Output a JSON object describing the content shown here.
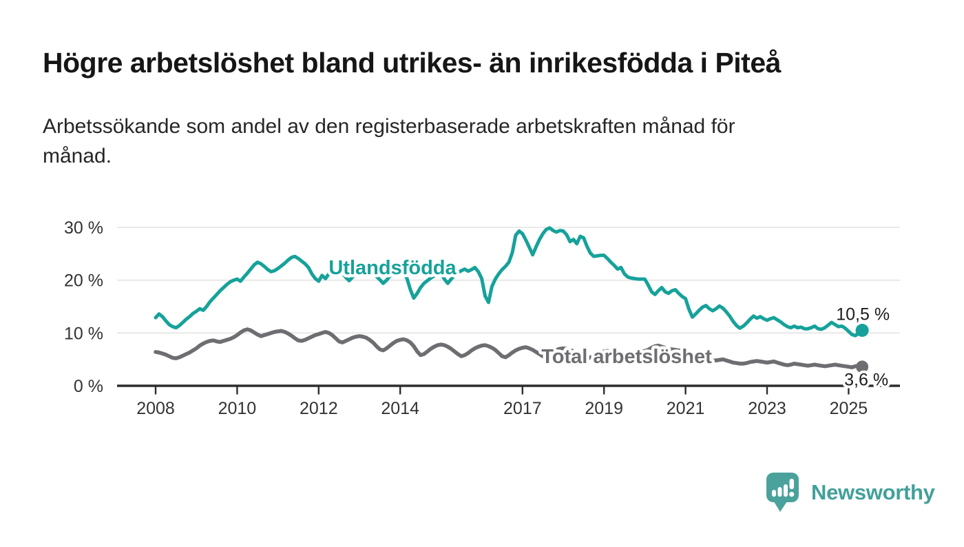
{
  "header": {
    "title": "Högre arbetslöshet bland utrikes- än inrikesfödda i Piteå",
    "subtitle": "Arbetssökande som andel av den registerbaserade arbetskraften månad för\nmånad."
  },
  "chart_data": {
    "type": "line",
    "x_start_year": 2008,
    "points_per_year": 12,
    "x_tick_years": [
      2008,
      2010,
      2012,
      2014,
      2017,
      2019,
      2021,
      2023,
      2025
    ],
    "x_tick_labels": [
      "2008",
      "2010",
      "2012",
      "2014",
      "2017",
      "2019",
      "2021",
      "2023",
      "2025"
    ],
    "y_tick_values": [
      30,
      20,
      10,
      0
    ],
    "y_tick_labels": [
      "30 %",
      "20 %",
      "10 %",
      "0 %"
    ],
    "ylim": [
      0,
      30
    ],
    "grid": "horizontal",
    "legend_position": "inline-labels",
    "series": [
      {
        "name": "Utlandsfödda",
        "color": "#16a29a",
        "end_label": "10,5 %",
        "values": [
          12.9,
          13.6,
          13.1,
          12.3,
          11.6,
          11.2,
          11.0,
          11.4,
          12.0,
          12.6,
          13.1,
          13.7,
          14.1,
          14.6,
          14.3,
          15.0,
          15.9,
          16.6,
          17.3,
          18.0,
          18.6,
          19.2,
          19.7,
          20.0,
          20.2,
          19.8,
          20.6,
          21.3,
          22.1,
          22.9,
          23.4,
          23.1,
          22.6,
          22.0,
          21.6,
          21.8,
          22.2,
          22.7,
          23.2,
          23.8,
          24.3,
          24.5,
          24.1,
          23.6,
          23.1,
          22.4,
          21.2,
          20.3,
          19.8,
          20.9,
          20.3,
          21.2,
          21.8,
          22.2,
          21.9,
          21.3,
          20.5,
          19.9,
          20.6,
          21.2,
          21.5,
          21.9,
          22.2,
          21.8,
          21.3,
          20.7,
          20.1,
          19.4,
          20.0,
          20.8,
          21.3,
          21.7,
          21.9,
          21.4,
          20.3,
          18.2,
          16.6,
          17.5,
          18.6,
          19.4,
          19.9,
          20.4,
          20.8,
          21.1,
          21.3,
          20.2,
          19.4,
          20.2,
          20.9,
          21.4,
          21.8,
          22.1,
          21.7,
          22.0,
          22.4,
          21.6,
          20.3,
          17.0,
          15.8,
          18.8,
          20.2,
          21.2,
          22.0,
          22.6,
          23.4,
          25.2,
          28.5,
          29.3,
          28.8,
          27.6,
          26.2,
          24.8,
          26.3,
          27.7,
          28.8,
          29.6,
          29.9,
          29.4,
          29.1,
          29.4,
          29.3,
          28.6,
          27.3,
          27.7,
          26.9,
          28.3,
          28.0,
          26.4,
          25.1,
          24.5,
          24.6,
          24.7,
          24.7,
          24.1,
          23.4,
          22.8,
          22.1,
          22.4,
          21.2,
          20.6,
          20.4,
          20.3,
          20.2,
          20.2,
          20.2,
          19.1,
          17.8,
          17.3,
          18.0,
          18.6,
          17.8,
          17.5,
          18.0,
          18.2,
          17.5,
          16.9,
          16.5,
          14.5,
          13.0,
          13.6,
          14.3,
          14.9,
          15.2,
          14.6,
          14.2,
          14.6,
          15.1,
          14.7,
          14.0,
          13.2,
          12.2,
          11.4,
          10.9,
          11.3,
          11.9,
          12.6,
          13.2,
          12.8,
          13.1,
          12.7,
          12.4,
          12.7,
          12.9,
          12.5,
          12.1,
          11.6,
          11.2,
          11.0,
          11.3,
          11.0,
          11.1,
          10.8,
          10.8,
          11.0,
          11.3,
          10.8,
          10.7,
          11.0,
          11.5,
          12.0,
          11.6,
          11.2,
          11.3,
          10.9,
          10.3,
          9.7,
          9.5,
          10.0,
          10.5
        ]
      },
      {
        "name": "Total arbetslöshet",
        "color": "#6e6e72",
        "end_label": "3,6 %",
        "values": [
          6.4,
          6.3,
          6.1,
          5.9,
          5.6,
          5.3,
          5.2,
          5.4,
          5.7,
          6.0,
          6.3,
          6.7,
          7.1,
          7.6,
          8.0,
          8.3,
          8.5,
          8.6,
          8.4,
          8.3,
          8.5,
          8.7,
          8.9,
          9.2,
          9.6,
          10.1,
          10.5,
          10.7,
          10.5,
          10.1,
          9.7,
          9.4,
          9.6,
          9.8,
          10.0,
          10.2,
          10.3,
          10.4,
          10.2,
          9.9,
          9.5,
          9.0,
          8.6,
          8.5,
          8.7,
          9.0,
          9.3,
          9.6,
          9.8,
          10.0,
          10.2,
          10.0,
          9.6,
          9.0,
          8.4,
          8.2,
          8.5,
          8.8,
          9.1,
          9.3,
          9.4,
          9.3,
          9.1,
          8.7,
          8.2,
          7.5,
          6.9,
          6.7,
          7.1,
          7.6,
          8.1,
          8.5,
          8.7,
          8.8,
          8.6,
          8.2,
          7.5,
          6.5,
          5.8,
          6.0,
          6.5,
          7.0,
          7.4,
          7.7,
          7.8,
          7.7,
          7.4,
          7.0,
          6.5,
          6.0,
          5.6,
          5.8,
          6.2,
          6.7,
          7.1,
          7.4,
          7.6,
          7.7,
          7.5,
          7.2,
          6.8,
          6.2,
          5.6,
          5.4,
          5.8,
          6.3,
          6.7,
          7.0,
          7.2,
          7.3,
          7.1,
          6.8,
          6.4,
          6.0,
          5.6,
          5.8,
          6.2,
          6.5,
          6.8,
          7.0,
          7.1,
          7.0,
          6.8,
          6.5,
          6.1,
          5.6,
          5.2,
          5.1,
          5.4,
          5.7,
          6.0,
          6.3,
          6.5,
          6.6,
          6.4,
          6.1,
          5.8,
          5.4,
          5.1,
          5.2,
          5.5,
          5.8,
          6.1,
          6.4,
          6.6,
          6.8,
          7.2,
          7.5,
          7.6,
          7.4,
          7.2,
          7.0,
          6.9,
          6.8,
          6.7,
          6.6,
          6.5,
          6.4,
          6.2,
          6.0,
          5.7,
          5.4,
          5.1,
          4.9,
          4.8,
          4.8,
          4.9,
          5.0,
          4.8,
          4.6,
          4.4,
          4.3,
          4.2,
          4.2,
          4.3,
          4.5,
          4.6,
          4.7,
          4.6,
          4.5,
          4.4,
          4.5,
          4.6,
          4.4,
          4.2,
          4.0,
          3.9,
          4.0,
          4.2,
          4.1,
          4.0,
          3.9,
          3.8,
          3.9,
          4.0,
          3.9,
          3.8,
          3.7,
          3.8,
          3.9,
          4.0,
          3.9,
          3.8,
          3.7,
          3.6,
          3.5,
          3.7,
          3.8,
          3.6
        ]
      }
    ],
    "colors": {
      "grid": "#e3e3e3",
      "axis": "#2d2d2d",
      "tick_text": "#333333",
      "end_label_text": "#1c1c1c"
    }
  },
  "branding": {
    "logo_text": "Newsworthy",
    "logo_color": "#42a09a",
    "logo_icon": "bar-chart-speech-bubble-icon"
  }
}
